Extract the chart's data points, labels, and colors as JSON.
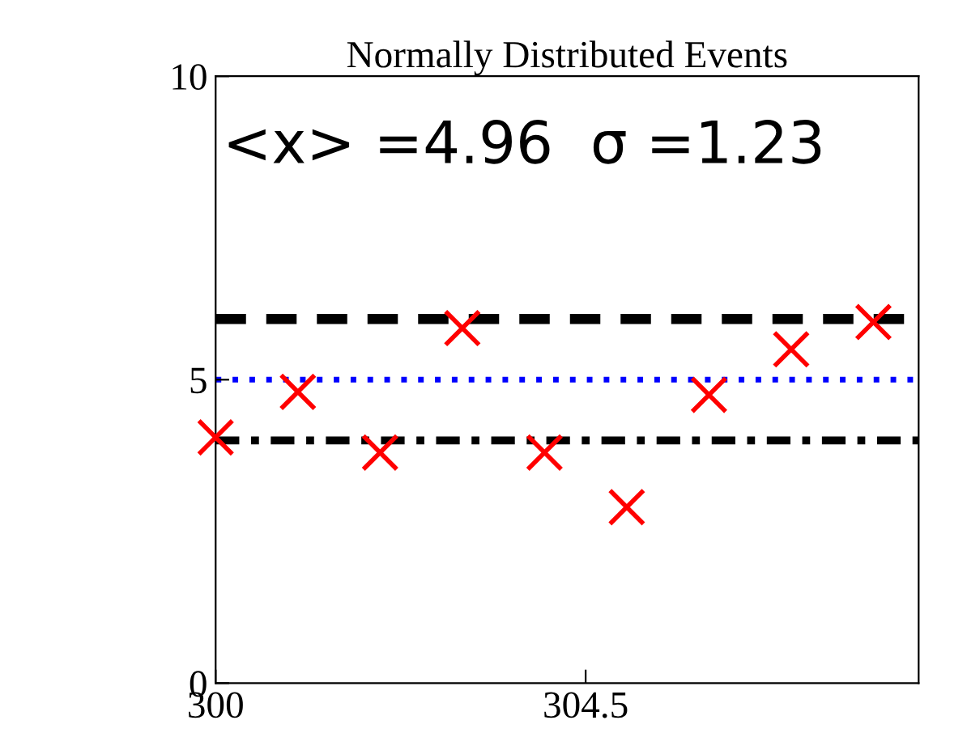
{
  "chart_data": {
    "type": "scatter",
    "title": "Normally Distributed Events",
    "x": [
      300,
      301,
      302,
      303,
      304,
      305,
      306,
      307,
      308
    ],
    "series": [
      {
        "color": "#ff0000",
        "values": [
          4.05,
          4.8,
          3.8,
          5.85,
          3.8,
          2.9,
          4.75,
          5.5,
          5.95
        ]
      }
    ],
    "marker": "cross",
    "xlim": [
      300,
      308.55
    ],
    "xticks": [
      300,
      304.5
    ],
    "ylim": [
      0,
      10
    ],
    "yticks": [
      0,
      5,
      10
    ],
    "grid": false,
    "legend": false,
    "ref_lines": [
      {
        "axis": "y",
        "value": 6,
        "color": "#000000",
        "line_style": "dashed"
      },
      {
        "axis": "y",
        "value": 5,
        "color": "#0000ff",
        "line_style": "dotted"
      },
      {
        "axis": "y",
        "value": 4,
        "color": "#000000",
        "line_style": "dashdot"
      }
    ],
    "annotations": [
      "<x> =4.96  σ =1.23"
    ]
  }
}
